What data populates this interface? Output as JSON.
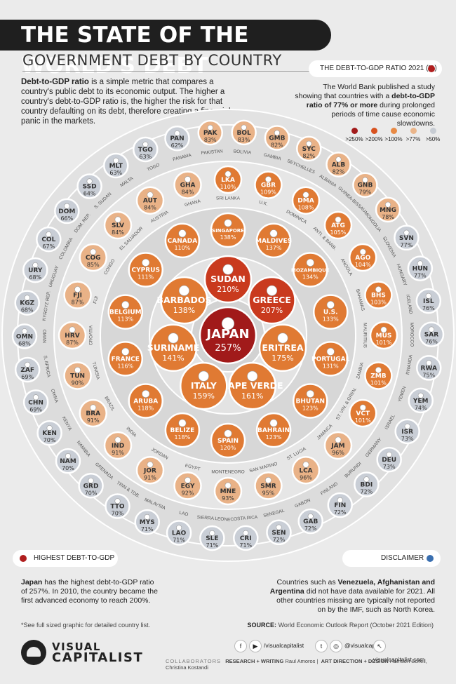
{
  "header": {
    "title": "THE STATE OF THE WORLD'S DEBT",
    "subtitle": "GOVERNMENT DEBT BY COUNTRY"
  },
  "intro": {
    "lead_bold": "Debt-to-GDP ratio",
    "text": " is a simple metric that compares a country's public debt to its economic output. The higher a country's debt-to-GDP ratio is, the higher the risk for that country defaulting on its debt, therefore creating a financial panic in the markets."
  },
  "legend": {
    "pill_label": "THE DEBT-TO-GDP RATIO 2021 (%)",
    "wb_text_1": "The World Bank published a study showing that countries with a ",
    "wb_text_bold": "debt-to-GDP ratio of 77% or more",
    "wb_text_2": " during prolonged periods of time cause economic slowdowns.",
    "scale": [
      {
        "label": ">250%",
        "color": "#a11a1a"
      },
      {
        "label": ">200%",
        "color": "#d8521f"
      },
      {
        "label": ">100%",
        "color": "#e88a45"
      },
      {
        "label": ">77%",
        "color": "#eab58a"
      },
      {
        "label": ">50%",
        "color": "#c7ccd3"
      }
    ]
  },
  "chart_data": {
    "type": "bubble",
    "title": "THE STATE OF THE WORLD'S DEBT",
    "subtitle": "GOVERNMENT DEBT BY COUNTRY",
    "metric": "THE DEBT-TO-GDP RATIO 2021 (%)",
    "rings": [
      {
        "ring": 0,
        "countries": [
          {
            "code": "JAPAN",
            "name": "",
            "value": 257
          }
        ]
      },
      {
        "ring": 1,
        "countries": [
          {
            "code": "SUDAN",
            "name": "",
            "value": 210
          },
          {
            "code": "GREECE",
            "name": "",
            "value": 207
          },
          {
            "code": "ERITREA",
            "name": "",
            "value": 175
          },
          {
            "code": "CAPE VERDE",
            "name": "",
            "value": 161
          },
          {
            "code": "ITALY",
            "name": "",
            "value": 159
          },
          {
            "code": "SURINAME",
            "name": "",
            "value": 141
          },
          {
            "code": "BARBADOS",
            "name": "",
            "value": 138
          }
        ]
      },
      {
        "ring": 2,
        "countries": [
          {
            "code": "SINGAPORE",
            "name": "",
            "value": 138
          },
          {
            "code": "MALDIVES",
            "name": "",
            "value": 137
          },
          {
            "code": "MOZAMBIQUE",
            "name": "",
            "value": 134
          },
          {
            "code": "U.S.",
            "name": "",
            "value": 133
          },
          {
            "code": "PORTUGAL",
            "name": "",
            "value": 131
          },
          {
            "code": "BHUTAN",
            "name": "",
            "value": 123
          },
          {
            "code": "BAHRAIN",
            "name": "",
            "value": 123
          },
          {
            "code": "SPAIN",
            "name": "",
            "value": 120
          },
          {
            "code": "BELIZE",
            "name": "",
            "value": 118
          },
          {
            "code": "ARUBA",
            "name": "",
            "value": 118
          },
          {
            "code": "FRANCE",
            "name": "",
            "value": 116
          },
          {
            "code": "BELGIUM",
            "name": "",
            "value": 113
          },
          {
            "code": "CYPRUS",
            "name": "",
            "value": 111
          },
          {
            "code": "CANADA",
            "name": "",
            "value": 110
          }
        ]
      },
      {
        "ring": 3,
        "countries": [
          {
            "code": "LKA",
            "name": "SRI LANKA",
            "value": 110
          },
          {
            "code": "GBR",
            "name": "U.K.",
            "value": 109
          },
          {
            "code": "DMA",
            "name": "DOMINICA",
            "value": 108
          },
          {
            "code": "ATG",
            "name": "ANTI. & BARB.",
            "value": 105
          },
          {
            "code": "AGO",
            "name": "ANGOLA",
            "value": 104
          },
          {
            "code": "BHS",
            "name": "BAHAMAS",
            "value": 103
          },
          {
            "code": "MUS",
            "name": "MAURITIUS",
            "value": 101
          },
          {
            "code": "ZMB",
            "name": "ZAMBIA",
            "value": 101
          },
          {
            "code": "VCT",
            "name": "ST. VIN. & GREN.",
            "value": 101
          },
          {
            "code": "JAM",
            "name": "JAMAICA",
            "value": 96
          },
          {
            "code": "LCA",
            "name": "ST. LUCIA",
            "value": 96
          },
          {
            "code": "SMR",
            "name": "SAN MARINO",
            "value": 95
          },
          {
            "code": "MNE",
            "name": "MONTENEGRO",
            "value": 93
          },
          {
            "code": "EGY",
            "name": "EGYPT",
            "value": 92
          },
          {
            "code": "JOR",
            "name": "JORDAN",
            "value": 91
          },
          {
            "code": "IND",
            "name": "INDIA",
            "value": 91
          },
          {
            "code": "BRA",
            "name": "BRAZIL",
            "value": 91
          },
          {
            "code": "TUN",
            "name": "TUNISIA",
            "value": 90
          },
          {
            "code": "HRV",
            "name": "CROATIA",
            "value": 87
          },
          {
            "code": "FJI",
            "name": "FIJI",
            "value": 87
          },
          {
            "code": "COG",
            "name": "CONGO",
            "value": 85
          },
          {
            "code": "SLV",
            "name": "EL SALVADOR",
            "value": 84
          },
          {
            "code": "AUT",
            "name": "AUSTRIA",
            "value": 84
          },
          {
            "code": "GHA",
            "name": "GHANA",
            "value": 84
          }
        ]
      },
      {
        "ring": 4,
        "countries": [
          {
            "code": "PAK",
            "name": "PAKISTAN",
            "value": 83
          },
          {
            "code": "BOL",
            "name": "BOLIVIA",
            "value": 83
          },
          {
            "code": "GMB",
            "name": "GAMBIA",
            "value": 82
          },
          {
            "code": "SYC",
            "name": "SEYCHELLES",
            "value": 82
          },
          {
            "code": "ALB",
            "name": "ALBANIA",
            "value": 82
          },
          {
            "code": "GNB",
            "name": "GUINEA-BISSAU",
            "value": 79
          },
          {
            "code": "MNG",
            "name": "MONGOLIA",
            "value": 78
          },
          {
            "code": "SVN",
            "name": "SLOVENIA",
            "value": 77
          },
          {
            "code": "HUN",
            "name": "HUNGARY",
            "value": 77
          },
          {
            "code": "ISL",
            "name": "ICELAND",
            "value": 76
          },
          {
            "code": "SAR",
            "name": "MOROCCO",
            "value": 76
          },
          {
            "code": "RWA",
            "name": "RWANDA",
            "value": 75
          },
          {
            "code": "YEM",
            "name": "YEMEN",
            "value": 74
          },
          {
            "code": "ISR",
            "name": "ISRAEL",
            "value": 73
          },
          {
            "code": "DEU",
            "name": "GERMANY",
            "value": 73
          },
          {
            "code": "BDI",
            "name": "BURUNDI",
            "value": 72
          },
          {
            "code": "FIN",
            "name": "FINLAND",
            "value": 72
          },
          {
            "code": "GAB",
            "name": "GABON",
            "value": 72
          },
          {
            "code": "SEN",
            "name": "SENEGAL",
            "value": 72
          },
          {
            "code": "CRI",
            "name": "COSTA RICA",
            "value": 71
          },
          {
            "code": "SLE",
            "name": "SIERRA LEONE",
            "value": 71
          },
          {
            "code": "LAO",
            "name": "LAO",
            "value": 71
          },
          {
            "code": "MYS",
            "name": "MALAYSIA",
            "value": 71
          },
          {
            "code": "TTO",
            "name": "TRIN & TDB.",
            "value": 70
          },
          {
            "code": "GRD",
            "name": "GRENADA",
            "value": 70
          },
          {
            "code": "NAM",
            "name": "NAMIBIA",
            "value": 70
          },
          {
            "code": "KEN",
            "name": "KENYA",
            "value": 70
          },
          {
            "code": "CHN",
            "name": "CHINA",
            "value": 69
          },
          {
            "code": "ZAF",
            "name": "S. AFRICA",
            "value": 69
          },
          {
            "code": "OMN",
            "name": "OMAN",
            "value": 68
          },
          {
            "code": "KGZ",
            "name": "KYRGYZ REP.",
            "value": 68
          },
          {
            "code": "URY",
            "name": "URUGUAY",
            "value": 68
          },
          {
            "code": "COL",
            "name": "COLOMBIA",
            "value": 67
          },
          {
            "code": "DOM",
            "name": "DOM. REP.",
            "value": 66
          },
          {
            "code": "SSD",
            "name": "S. SUDAN",
            "value": 64
          },
          {
            "code": "MLT",
            "name": "MALTA",
            "value": 63
          },
          {
            "code": "TGO",
            "name": "TOGO",
            "value": 63
          },
          {
            "code": "PAN",
            "name": "PANAMA",
            "value": 62
          }
        ]
      }
    ]
  },
  "highlight": {
    "pill_label": "HIGHEST DEBT-TO-GDP",
    "bold": "Japan",
    "text": " has the highest debt-to-GDP ratio of 257%. In 2010, the country became the first advanced economy to reach 200%."
  },
  "disclaimer": {
    "pill_label": "DISCLAIMER",
    "t1": "Countries such as ",
    "b1": "Venezuela, Afghanistan and Argentina",
    "t2": " did not have data available for 2021. All other countries missing are typically not reported on by the IMF, such as North Korea."
  },
  "footnote": "*See full sized graphic for detailed country list.",
  "source": {
    "label": "SOURCE:",
    "text": " World Economic Outlook Report (October 2021 Edition)"
  },
  "brand": {
    "line1": "VISUAL",
    "line2": "CAPITALIST"
  },
  "social": {
    "facebook": "/visualcapitalist",
    "twitter": "@visualcap",
    "web": "visualcapitalist.com"
  },
  "credits": {
    "label": "COLLABORATORS",
    "research_label": "RESEARCH + WRITING",
    "research": "Raul Amoros",
    "art_label": "ART DIRECTION + DESIGN",
    "art": "Harrison Schell, Christina Kostandi"
  },
  "colors": {
    "tier_250": "#a11a1a",
    "tier_200": "#c93a1e",
    "tier_100": "#e07a33",
    "tier_77": "#e9b287",
    "tier_50": "#c9ced6"
  }
}
